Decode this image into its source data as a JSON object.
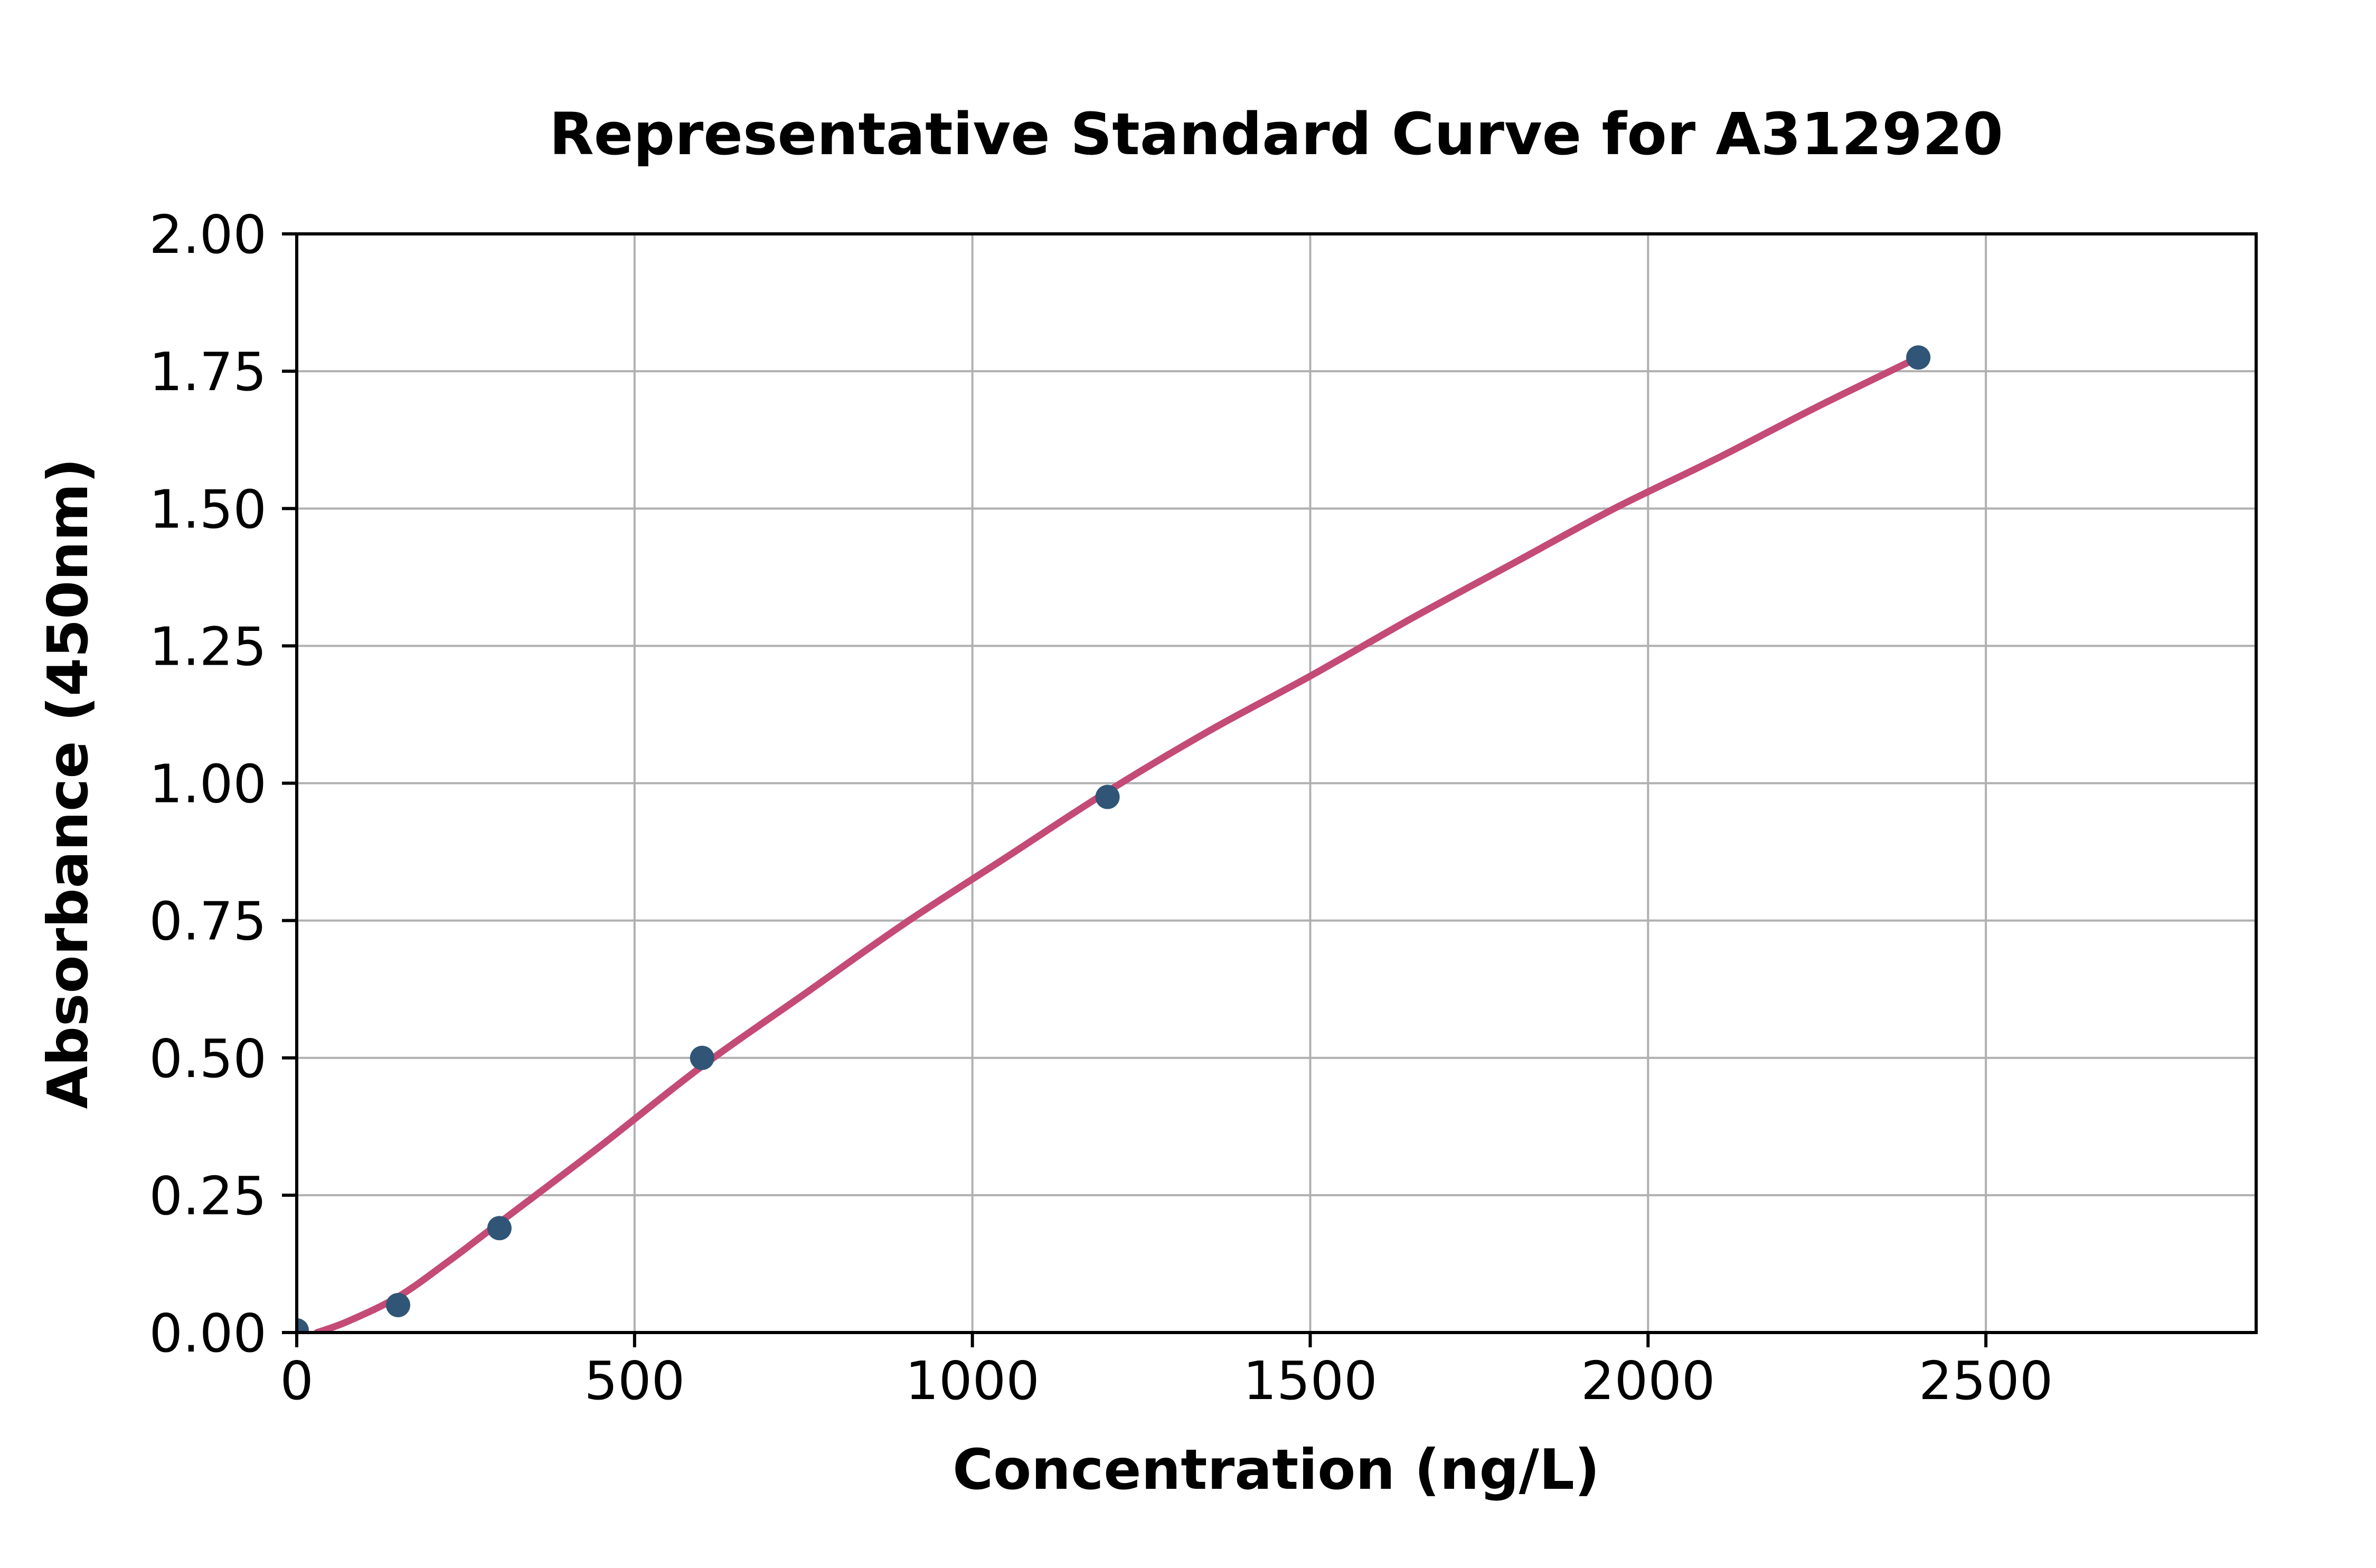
{
  "chart_data": {
    "type": "scatter",
    "title": "Representative Standard Curve for A312920",
    "xlabel": "Concentration (ng/L)",
    "ylabel": "Absorbance (450nm)",
    "xlim": [
      0,
      2900
    ],
    "ylim": [
      0,
      2
    ],
    "grid": true,
    "legend_position": "none",
    "x_ticks": [
      {
        "value": 0,
        "label": "0"
      },
      {
        "value": 500,
        "label": "500"
      },
      {
        "value": 1000,
        "label": "1000"
      },
      {
        "value": 1500,
        "label": "1500"
      },
      {
        "value": 2000,
        "label": "2000"
      },
      {
        "value": 2500,
        "label": "2500"
      }
    ],
    "y_ticks": [
      {
        "value": 0,
        "label": "0.00"
      },
      {
        "value": 0.25,
        "label": "0.25"
      },
      {
        "value": 0.5,
        "label": "0.50"
      },
      {
        "value": 0.75,
        "label": "0.75"
      },
      {
        "value": 1,
        "label": "1.00"
      },
      {
        "value": 1.25,
        "label": "1.25"
      },
      {
        "value": 1.5,
        "label": "1.50"
      },
      {
        "value": 1.75,
        "label": "1.75"
      },
      {
        "value": 2,
        "label": "2.00"
      }
    ],
    "series": [
      {
        "name": "standard-points",
        "type": "scatter",
        "points": [
          {
            "x": 0,
            "y": 0.004
          },
          {
            "x": 150,
            "y": 0.05
          },
          {
            "x": 300,
            "y": 0.19
          },
          {
            "x": 600,
            "y": 0.5
          },
          {
            "x": 1200,
            "y": 0.975
          },
          {
            "x": 2400,
            "y": 1.775
          }
        ]
      },
      {
        "name": "fit-curve",
        "type": "line",
        "points": [
          {
            "x": 30,
            "y": 0.0
          },
          {
            "x": 75,
            "y": 0.02
          },
          {
            "x": 150,
            "y": 0.065
          },
          {
            "x": 225,
            "y": 0.13
          },
          {
            "x": 300,
            "y": 0.2
          },
          {
            "x": 450,
            "y": 0.34
          },
          {
            "x": 600,
            "y": 0.485
          },
          {
            "x": 750,
            "y": 0.615
          },
          {
            "x": 900,
            "y": 0.745
          },
          {
            "x": 1050,
            "y": 0.865
          },
          {
            "x": 1200,
            "y": 0.985
          },
          {
            "x": 1350,
            "y": 1.095
          },
          {
            "x": 1500,
            "y": 1.195
          },
          {
            "x": 1650,
            "y": 1.3
          },
          {
            "x": 1800,
            "y": 1.4
          },
          {
            "x": 1950,
            "y": 1.5
          },
          {
            "x": 2100,
            "y": 1.59
          },
          {
            "x": 2250,
            "y": 1.685
          },
          {
            "x": 2400,
            "y": 1.775
          }
        ]
      }
    ],
    "colors": {
      "points": "#305576",
      "curve": "#c44b76",
      "grid": "#b0b0b0",
      "axes": "#000000",
      "background": "#ffffff"
    }
  }
}
